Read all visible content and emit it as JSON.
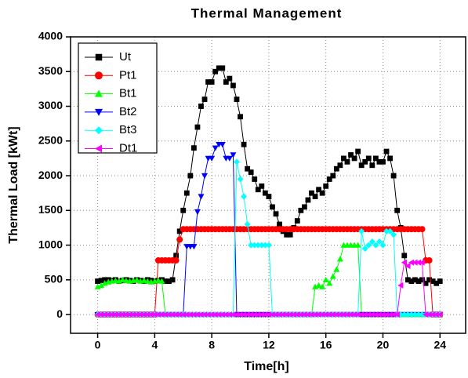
{
  "chart_data": {
    "type": "line",
    "title": "Thermal Management",
    "x_label": "Time[h]",
    "y_label": "Thermal Load [kWt]",
    "xlim": [
      -1.9,
      25.8
    ],
    "ylim": [
      -270,
      4000
    ],
    "xticks": [
      0,
      4,
      8,
      12,
      16,
      20,
      24
    ],
    "yticks": [
      0,
      500,
      1000,
      1500,
      2000,
      2500,
      3000,
      3500,
      4000
    ],
    "grid": true,
    "legend": "upper-left",
    "x": [
      0,
      0.25,
      0.5,
      0.75,
      1,
      1.25,
      1.5,
      1.75,
      2,
      2.25,
      2.5,
      2.75,
      3,
      3.25,
      3.5,
      3.75,
      4,
      4.25,
      4.5,
      4.75,
      5,
      5.25,
      5.5,
      5.75,
      6,
      6.25,
      6.5,
      6.75,
      7,
      7.25,
      7.5,
      7.75,
      8,
      8.25,
      8.5,
      8.75,
      9,
      9.25,
      9.5,
      9.75,
      10,
      10.25,
      10.5,
      10.75,
      11,
      11.25,
      11.5,
      11.75,
      12,
      12.25,
      12.5,
      12.75,
      13,
      13.25,
      13.5,
      13.75,
      14,
      14.25,
      14.5,
      14.75,
      15,
      15.25,
      15.5,
      15.75,
      16,
      16.25,
      16.5,
      16.75,
      17,
      17.25,
      17.5,
      17.75,
      18,
      18.25,
      18.5,
      18.75,
      19,
      19.25,
      19.5,
      19.75,
      20,
      20.25,
      20.5,
      20.75,
      21,
      21.25,
      21.5,
      21.75,
      22,
      22.25,
      22.5,
      22.75,
      23,
      23.25,
      23.5,
      23.75,
      24
    ],
    "series": [
      {
        "name": "Ut",
        "color": "#000000",
        "marker": "square",
        "values": [
          480,
          490,
          500,
          500,
          490,
          500,
          480,
          490,
          500,
          490,
          480,
          500,
          490,
          480,
          500,
          490,
          480,
          490,
          500,
          480,
          480,
          500,
          850,
          1200,
          1500,
          1750,
          2000,
          2400,
          2700,
          3000,
          3100,
          3350,
          3350,
          3500,
          3550,
          3550,
          3350,
          3400,
          3300,
          3100,
          2850,
          2450,
          2100,
          2050,
          1950,
          1800,
          1850,
          1750,
          1700,
          1550,
          1450,
          1300,
          1200,
          1150,
          1150,
          1250,
          1350,
          1500,
          1550,
          1650,
          1750,
          1700,
          1800,
          1750,
          1850,
          1950,
          2000,
          2100,
          2150,
          2250,
          2200,
          2300,
          2250,
          2350,
          2150,
          2200,
          2250,
          2150,
          2250,
          2200,
          2200,
          2350,
          2250,
          2000,
          1500,
          1250,
          850,
          500,
          480,
          500,
          480,
          500,
          450,
          500,
          480,
          450,
          480
        ]
      },
      {
        "name": "Pt1",
        "color": "#ff0000",
        "marker": "circle",
        "values": [
          0,
          0,
          0,
          0,
          0,
          0,
          0,
          0,
          0,
          0,
          0,
          0,
          0,
          0,
          0,
          0,
          0,
          780,
          780,
          780,
          780,
          780,
          780,
          1080,
          1230,
          1230,
          1230,
          1230,
          1230,
          1230,
          1230,
          1230,
          1230,
          1230,
          1230,
          1230,
          1230,
          1230,
          1230,
          1230,
          1230,
          1230,
          1230,
          1230,
          1230,
          1230,
          1230,
          1230,
          1230,
          1230,
          1230,
          1230,
          1230,
          1230,
          1230,
          1230,
          1230,
          1230,
          1230,
          1230,
          1230,
          1230,
          1230,
          1230,
          1230,
          1230,
          1230,
          1230,
          1230,
          1230,
          1230,
          1230,
          1230,
          1230,
          1230,
          1230,
          1230,
          1230,
          1230,
          1230,
          1230,
          1230,
          1230,
          1230,
          1230,
          1230,
          1230,
          1230,
          1230,
          1230,
          1230,
          1230,
          780,
          780,
          0,
          0,
          0
        ]
      },
      {
        "name": "Bt1",
        "color": "#00ff00",
        "marker": "triangle-up",
        "values": [
          400,
          420,
          450,
          470,
          480,
          490,
          480,
          500,
          490,
          480,
          490,
          500,
          480,
          490,
          480,
          470,
          480,
          490,
          480,
          0,
          0,
          0,
          0,
          0,
          0,
          0,
          0,
          0,
          0,
          0,
          0,
          0,
          0,
          0,
          0,
          0,
          0,
          0,
          0,
          0,
          0,
          0,
          0,
          0,
          0,
          0,
          0,
          0,
          0,
          0,
          0,
          0,
          0,
          0,
          0,
          0,
          0,
          0,
          0,
          0,
          0,
          400,
          420,
          400,
          500,
          450,
          550,
          650,
          800,
          1000,
          1000,
          1000,
          1000,
          1000,
          0,
          0,
          0,
          0,
          0,
          0,
          0,
          0,
          0,
          0,
          0,
          0,
          0,
          0,
          0,
          0,
          0,
          0,
          0,
          0,
          0,
          0,
          0
        ]
      },
      {
        "name": "Bt2",
        "color": "#0000ff",
        "marker": "triangle-down",
        "values": [
          0,
          0,
          0,
          0,
          0,
          0,
          0,
          0,
          0,
          0,
          0,
          0,
          0,
          0,
          0,
          0,
          0,
          0,
          0,
          0,
          0,
          0,
          0,
          0,
          0,
          980,
          980,
          980,
          1480,
          1700,
          2000,
          2250,
          2250,
          2400,
          2450,
          2450,
          2250,
          2250,
          2300,
          0,
          0,
          0,
          0,
          0,
          0,
          0,
          0,
          0,
          0,
          0,
          0,
          0,
          0,
          0,
          0,
          0,
          0,
          0,
          0,
          0,
          0,
          0,
          0,
          0,
          0,
          0,
          0,
          0,
          0,
          0,
          0,
          0,
          0,
          0,
          0,
          0,
          0,
          0,
          0,
          0,
          0,
          0,
          0,
          0,
          0,
          0,
          0,
          0,
          0,
          0,
          0,
          0,
          0,
          0,
          0,
          0,
          0
        ]
      },
      {
        "name": "Bt3",
        "color": "#00ffff",
        "marker": "diamond",
        "values": [
          0,
          0,
          0,
          0,
          0,
          0,
          0,
          0,
          0,
          0,
          0,
          0,
          0,
          0,
          0,
          0,
          0,
          0,
          0,
          0,
          0,
          0,
          0,
          0,
          0,
          0,
          0,
          0,
          0,
          0,
          0,
          0,
          0,
          0,
          0,
          0,
          0,
          0,
          0,
          2200,
          1950,
          1700,
          1300,
          1000,
          1000,
          1000,
          1000,
          1000,
          1000,
          0,
          0,
          0,
          0,
          0,
          0,
          0,
          0,
          0,
          0,
          0,
          0,
          0,
          0,
          0,
          0,
          0,
          0,
          0,
          0,
          0,
          0,
          0,
          0,
          0,
          1200,
          950,
          1000,
          1050,
          1000,
          1050,
          1000,
          1200,
          1200,
          1150,
          0,
          0,
          0,
          0,
          0,
          0,
          0,
          0,
          0,
          0,
          0,
          0,
          0
        ]
      },
      {
        "name": "Dt1",
        "color": "#ff00ff",
        "marker": "triangle-left",
        "values": [
          0,
          0,
          0,
          0,
          0,
          0,
          0,
          0,
          0,
          0,
          0,
          0,
          0,
          0,
          0,
          0,
          0,
          0,
          0,
          0,
          0,
          0,
          0,
          0,
          0,
          0,
          0,
          0,
          0,
          0,
          0,
          0,
          0,
          0,
          0,
          0,
          0,
          0,
          0,
          0,
          0,
          0,
          0,
          0,
          0,
          0,
          0,
          0,
          0,
          0,
          0,
          0,
          0,
          0,
          0,
          0,
          0,
          0,
          0,
          0,
          0,
          0,
          0,
          0,
          0,
          0,
          0,
          0,
          0,
          0,
          0,
          0,
          0,
          0,
          0,
          0,
          0,
          0,
          0,
          0,
          0,
          0,
          0,
          0,
          0,
          420,
          750,
          700,
          750,
          750,
          750,
          750,
          0,
          0,
          0,
          0,
          0
        ]
      }
    ]
  }
}
